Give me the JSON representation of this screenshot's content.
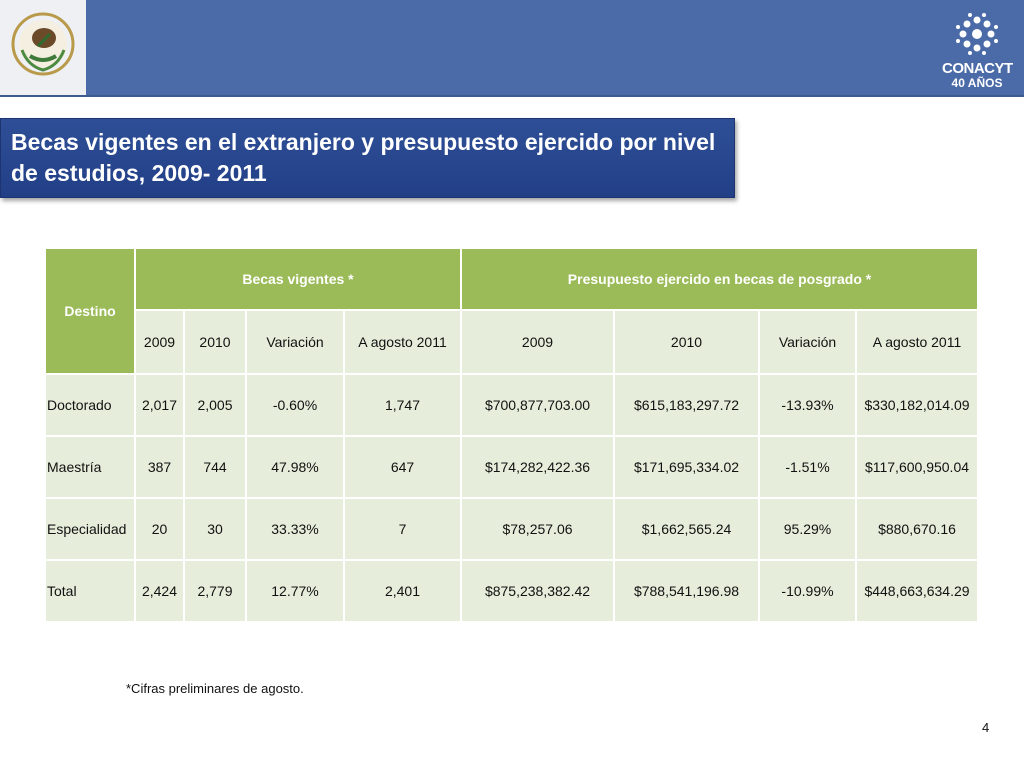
{
  "header": {
    "brand": "CONACYT",
    "brand_years": "40 AÑOS"
  },
  "title": "Becas vigentes en el extranjero y presupuesto ejercido por nivel de estudios, 2009- 2011",
  "table": {
    "destino_label": "Destino",
    "group_becas": "Becas vigentes *",
    "group_presupuesto": "Presupuesto ejercido en becas de posgrado *",
    "subheaders": [
      "2009",
      "2010",
      "Variación",
      "A agosto 2011",
      "2009",
      "2010",
      "Variación",
      "A agosto 2011"
    ],
    "rows": [
      [
        "Doctorado",
        "2,017",
        "2,005",
        "-0.60%",
        "1,747",
        "$700,877,703.00",
        "$615,183,297.72",
        "-13.93%",
        "$330,182,014.09"
      ],
      [
        "Maestría",
        "387",
        "744",
        "47.98%",
        "647",
        "$174,282,422.36",
        "$171,695,334.02",
        "-1.51%",
        "$117,600,950.04"
      ],
      [
        "Especialidad",
        "20",
        "30",
        "33.33%",
        "7",
        "$78,257.06",
        "$1,662,565.24",
        "95.29%",
        "$880,670.16"
      ],
      [
        "Total",
        "2,424",
        "2,779",
        "12.77%",
        "2,401",
        "$875,238,382.42",
        "$788,541,196.98",
        "-10.99%",
        "$448,663,634.29"
      ]
    ]
  },
  "footnote": "*Cifras preliminares de agosto.",
  "page_number": "4"
}
